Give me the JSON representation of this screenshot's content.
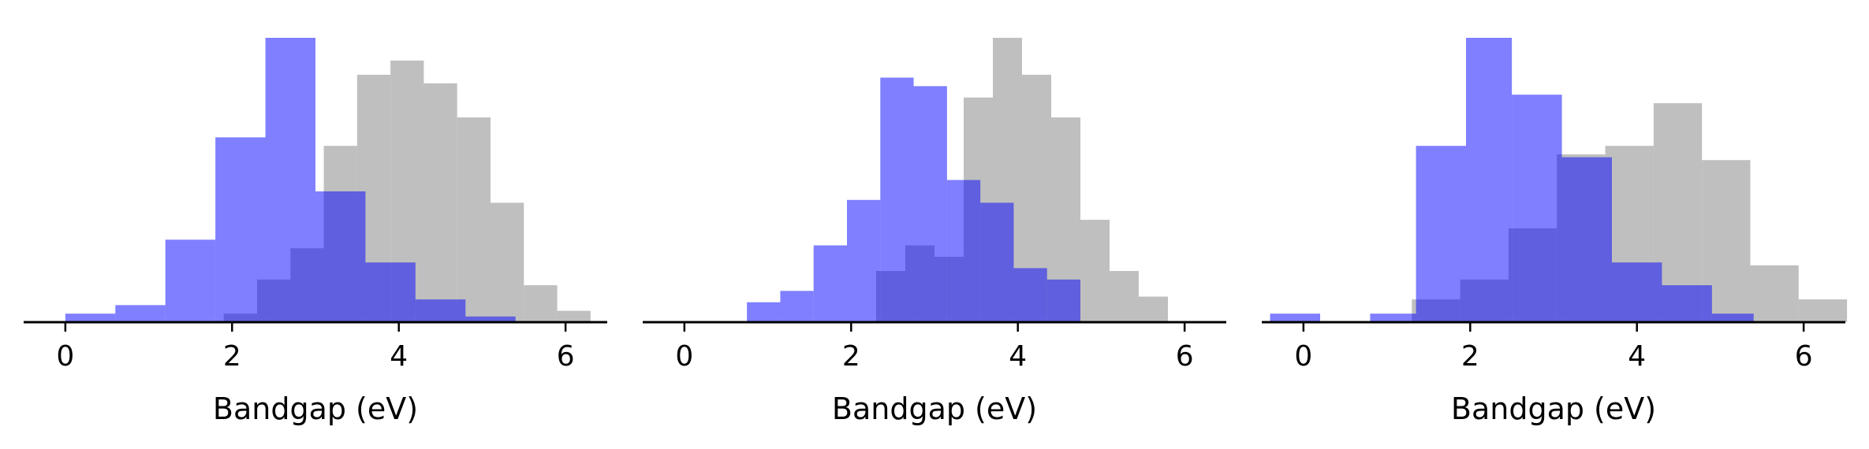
{
  "colors": {
    "gray": "#a6a6a6",
    "blue": "#0000ff",
    "axis": "#000000"
  },
  "chart_data": [
    {
      "type": "bar",
      "xlabel": "Bandgap (eV)",
      "xlim": [
        -0.5,
        6.5
      ],
      "ylim": [
        0,
        100
      ],
      "xticks": [
        0,
        2,
        4,
        6
      ],
      "xtick_labels": [
        "0",
        "2",
        "4",
        "6"
      ],
      "grid": false,
      "series": [
        {
          "color": "#a6a6a6",
          "opacity": 0.72,
          "bins": [
            [
              1.9,
              2.3,
              3
            ],
            [
              2.3,
              2.7,
              15
            ],
            [
              2.7,
              3.1,
              26
            ],
            [
              3.1,
              3.5,
              62
            ],
            [
              3.5,
              3.9,
              87
            ],
            [
              3.9,
              4.3,
              92
            ],
            [
              4.3,
              4.7,
              84
            ],
            [
              4.7,
              5.1,
              72
            ],
            [
              5.1,
              5.5,
              42
            ],
            [
              5.5,
              5.9,
              13
            ],
            [
              5.9,
              6.3,
              4
            ]
          ]
        },
        {
          "color": "#0000ff",
          "opacity": 0.5,
          "bins": [
            [
              0.0,
              0.6,
              3
            ],
            [
              0.6,
              1.2,
              6
            ],
            [
              1.2,
              1.8,
              29
            ],
            [
              1.8,
              2.4,
              65
            ],
            [
              2.4,
              3.0,
              100
            ],
            [
              3.0,
              3.6,
              46
            ],
            [
              3.6,
              4.2,
              21
            ],
            [
              4.2,
              4.8,
              8
            ],
            [
              4.8,
              5.4,
              2
            ]
          ]
        }
      ]
    },
    {
      "type": "bar",
      "xlabel": "Bandgap (eV)",
      "xlim": [
        -0.5,
        6.5
      ],
      "ylim": [
        0,
        100
      ],
      "xticks": [
        0,
        2,
        4,
        6
      ],
      "xtick_labels": [
        "0",
        "2",
        "4",
        "6"
      ],
      "grid": false,
      "series": [
        {
          "color": "#a6a6a6",
          "opacity": 0.72,
          "bins": [
            [
              2.3,
              2.65,
              18
            ],
            [
              2.65,
              3.0,
              27
            ],
            [
              3.0,
              3.35,
              23
            ],
            [
              3.35,
              3.7,
              79
            ],
            [
              3.7,
              4.05,
              100
            ],
            [
              4.05,
              4.4,
              87
            ],
            [
              4.4,
              4.75,
              72
            ],
            [
              4.75,
              5.1,
              36
            ],
            [
              5.1,
              5.45,
              18
            ],
            [
              5.45,
              5.8,
              9
            ]
          ]
        },
        {
          "color": "#0000ff",
          "opacity": 0.5,
          "bins": [
            [
              0.75,
              1.15,
              7
            ],
            [
              1.15,
              1.55,
              11
            ],
            [
              1.55,
              1.95,
              27
            ],
            [
              1.95,
              2.35,
              43
            ],
            [
              2.35,
              2.75,
              86
            ],
            [
              2.75,
              3.15,
              83
            ],
            [
              3.15,
              3.55,
              50
            ],
            [
              3.55,
              3.95,
              42
            ],
            [
              3.95,
              4.35,
              19
            ],
            [
              4.35,
              4.75,
              15
            ]
          ]
        }
      ]
    },
    {
      "type": "bar",
      "xlabel": "Bandgap (eV)",
      "xlim": [
        -0.5,
        6.5
      ],
      "ylim": [
        0,
        100
      ],
      "xticks": [
        0,
        2,
        4,
        6
      ],
      "xtick_labels": [
        "0",
        "2",
        "4",
        "6"
      ],
      "grid": false,
      "series": [
        {
          "color": "#a6a6a6",
          "opacity": 0.72,
          "bins": [
            [
              1.3,
              1.88,
              8
            ],
            [
              1.88,
              2.46,
              15
            ],
            [
              2.46,
              3.04,
              33
            ],
            [
              3.04,
              3.62,
              59
            ],
            [
              3.62,
              4.2,
              62
            ],
            [
              4.2,
              4.78,
              77
            ],
            [
              4.78,
              5.36,
              57
            ],
            [
              5.36,
              5.94,
              20
            ],
            [
              5.94,
              6.52,
              8
            ]
          ]
        },
        {
          "color": "#0000ff",
          "opacity": 0.5,
          "bins": [
            [
              -0.4,
              0.2,
              3
            ],
            [
              0.2,
              0.8,
              0
            ],
            [
              0.8,
              1.35,
              3
            ],
            [
              1.35,
              1.95,
              62
            ],
            [
              1.95,
              2.5,
              100
            ],
            [
              2.5,
              3.1,
              80
            ],
            [
              3.1,
              3.7,
              58
            ],
            [
              3.7,
              4.3,
              21
            ],
            [
              4.3,
              4.9,
              13
            ],
            [
              4.9,
              5.4,
              3
            ]
          ]
        }
      ]
    }
  ]
}
